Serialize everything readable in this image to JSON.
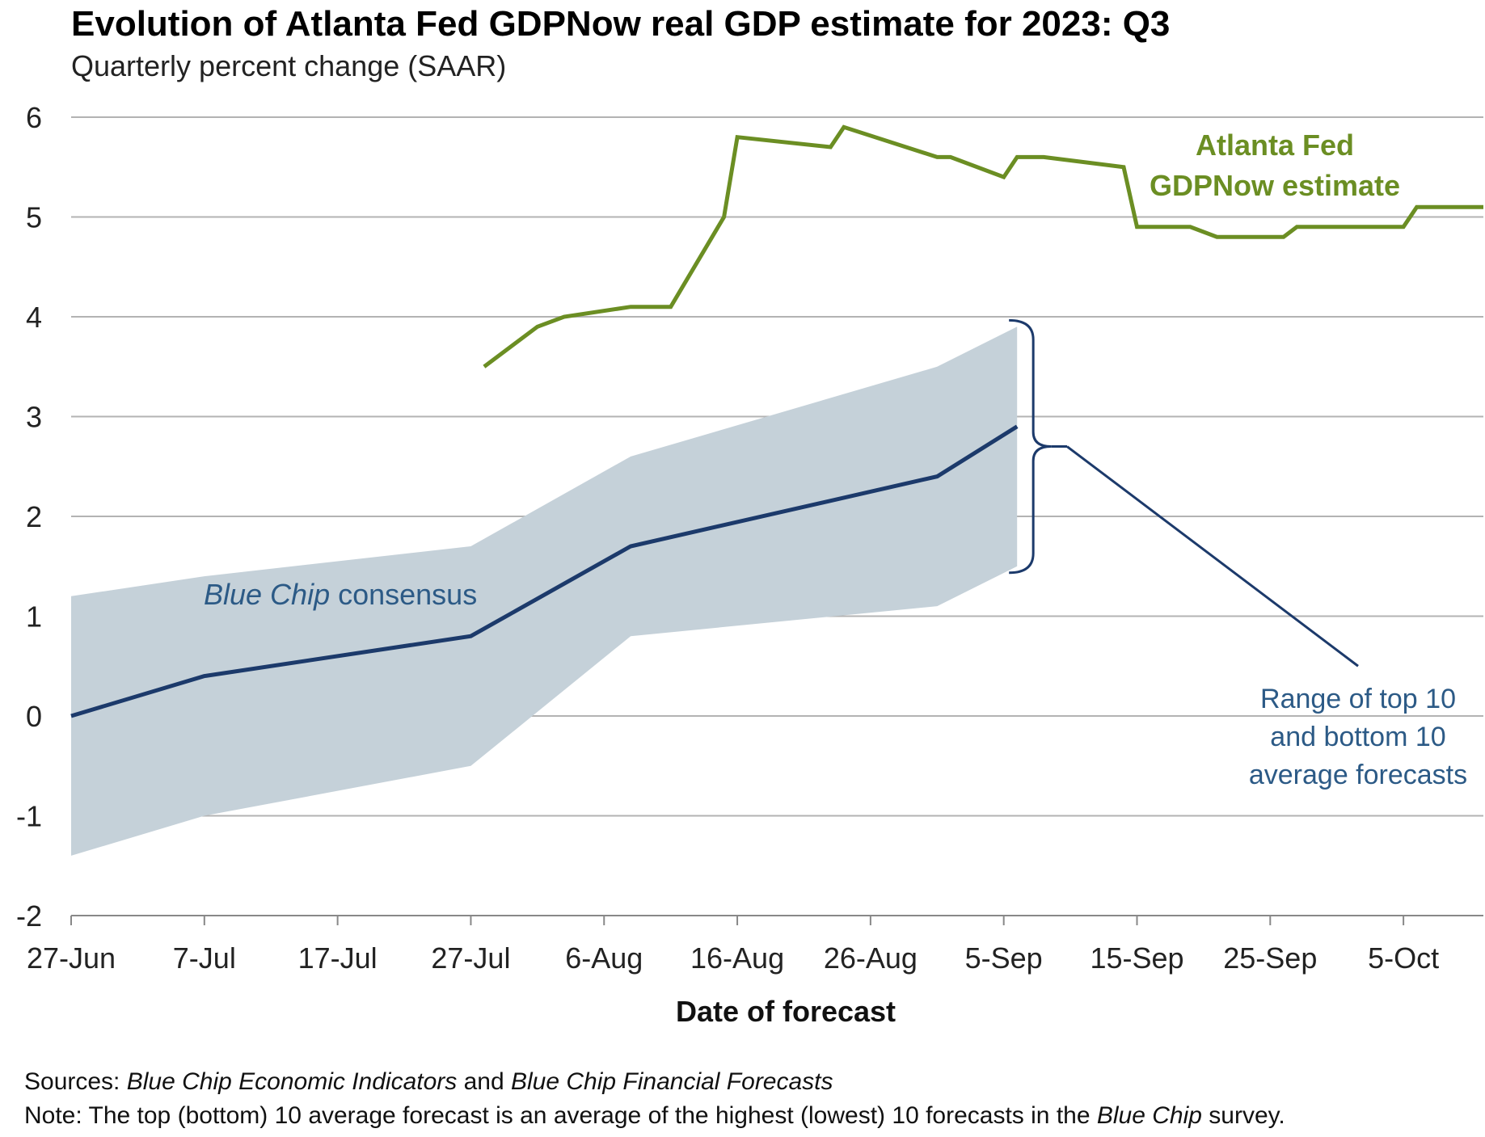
{
  "colors": {
    "gdpnow": "#6b8e23",
    "bluechip": "#1c3a6b",
    "band": "#c5d1d9",
    "grid": "#b3b3b3",
    "label_blue": "#2c5a86"
  },
  "chart_data": {
    "type": "line",
    "title": "Evolution of Atlanta Fed GDPNow real GDP estimate for 2023: Q3",
    "subtitle": "Quarterly percent change (SAAR)",
    "xlabel": "Date of forecast",
    "ylabel": "",
    "ylim": [
      -2,
      6
    ],
    "yticks": [
      -2,
      -1,
      0,
      1,
      2,
      3,
      4,
      5,
      6
    ],
    "xlim": [
      "2023-06-27",
      "2023-10-11"
    ],
    "xtick_labels": [
      "27-Jun",
      "7-Jul",
      "17-Jul",
      "27-Jul",
      "6-Aug",
      "16-Aug",
      "26-Aug",
      "5-Sep",
      "15-Sep",
      "25-Sep",
      "5-Oct"
    ],
    "xtick_dates": [
      "2023-06-27",
      "2023-07-07",
      "2023-07-17",
      "2023-07-27",
      "2023-08-06",
      "2023-08-16",
      "2023-08-26",
      "2023-09-05",
      "2023-09-15",
      "2023-09-25",
      "2023-10-05"
    ],
    "grid": true,
    "series": [
      {
        "name": "Atlanta Fed GDPNow estimate",
        "label_lines": [
          "Atlanta Fed",
          "GDPNow estimate"
        ],
        "points": [
          {
            "x": "2023-07-28",
            "y": 3.5
          },
          {
            "x": "2023-08-01",
            "y": 3.9
          },
          {
            "x": "2023-08-03",
            "y": 4.0
          },
          {
            "x": "2023-08-08",
            "y": 4.1
          },
          {
            "x": "2023-08-11",
            "y": 4.1
          },
          {
            "x": "2023-08-15",
            "y": 5.0
          },
          {
            "x": "2023-08-16",
            "y": 5.8
          },
          {
            "x": "2023-08-23",
            "y": 5.7
          },
          {
            "x": "2023-08-24",
            "y": 5.9
          },
          {
            "x": "2023-08-31",
            "y": 5.6
          },
          {
            "x": "2023-09-01",
            "y": 5.6
          },
          {
            "x": "2023-09-05",
            "y": 5.4
          },
          {
            "x": "2023-09-06",
            "y": 5.6
          },
          {
            "x": "2023-09-08",
            "y": 5.6
          },
          {
            "x": "2023-09-14",
            "y": 5.5
          },
          {
            "x": "2023-09-15",
            "y": 4.9
          },
          {
            "x": "2023-09-19",
            "y": 4.9
          },
          {
            "x": "2023-09-21",
            "y": 4.8
          },
          {
            "x": "2023-09-26",
            "y": 4.8
          },
          {
            "x": "2023-09-27",
            "y": 4.9
          },
          {
            "x": "2023-10-05",
            "y": 4.9
          },
          {
            "x": "2023-10-06",
            "y": 5.1
          },
          {
            "x": "2023-10-11",
            "y": 5.1
          }
        ]
      },
      {
        "name": "Blue Chip consensus",
        "label_italic": "Blue Chip",
        "label_rest": " consensus",
        "points": [
          {
            "x": "2023-06-27",
            "y": 0.0
          },
          {
            "x": "2023-07-07",
            "y": 0.4
          },
          {
            "x": "2023-07-27",
            "y": 0.8
          },
          {
            "x": "2023-08-08",
            "y": 1.7
          },
          {
            "x": "2023-08-31",
            "y": 2.4
          },
          {
            "x": "2023-09-06",
            "y": 2.9
          }
        ]
      }
    ],
    "band": {
      "name": "Range of top 10 and bottom 10 average forecasts",
      "label_lines": [
        "Range of top 10",
        "and bottom 10",
        "average forecasts"
      ],
      "x": [
        "2023-06-27",
        "2023-07-07",
        "2023-07-27",
        "2023-08-08",
        "2023-08-31",
        "2023-09-06"
      ],
      "upper": [
        1.2,
        1.4,
        1.7,
        2.6,
        3.5,
        3.9
      ],
      "lower": [
        -1.4,
        -1.0,
        -0.5,
        0.8,
        1.1,
        1.5
      ]
    }
  },
  "footer": {
    "sources_label": "Sources:",
    "sources_italic_1": "Blue Chip Economic Indicators",
    "sources_and": " and ",
    "sources_italic_2": "Blue Chip Financial Forecasts",
    "note_label": "Note:",
    "note_text": " The top (bottom) 10 average forecast is an average of the highest (lowest) 10 forecasts in the ",
    "note_italic": "Blue Chip",
    "note_end": " survey."
  }
}
